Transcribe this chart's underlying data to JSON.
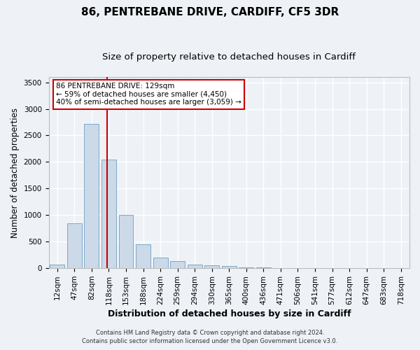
{
  "title_line1": "86, PENTREBANE DRIVE, CARDIFF, CF5 3DR",
  "title_line2": "Size of property relative to detached houses in Cardiff",
  "xlabel": "Distribution of detached houses by size in Cardiff",
  "ylabel": "Number of detached properties",
  "categories": [
    "12sqm",
    "47sqm",
    "82sqm",
    "118sqm",
    "153sqm",
    "188sqm",
    "224sqm",
    "259sqm",
    "294sqm",
    "330sqm",
    "365sqm",
    "400sqm",
    "436sqm",
    "471sqm",
    "506sqm",
    "541sqm",
    "577sqm",
    "612sqm",
    "647sqm",
    "683sqm",
    "718sqm"
  ],
  "values": [
    70,
    850,
    2720,
    2050,
    1000,
    450,
    200,
    130,
    70,
    55,
    40,
    15,
    10,
    8,
    5,
    0,
    0,
    0,
    0,
    0,
    0
  ],
  "bar_color": "#ccd9e8",
  "bar_edge_color": "#7aaac8",
  "red_line_index": 3,
  "annotation_text": "86 PENTREBANE DRIVE: 129sqm\n← 59% of detached houses are smaller (4,450)\n40% of semi-detached houses are larger (3,059) →",
  "annotation_box_color": "#ffffff",
  "annotation_box_edge_color": "#cc0000",
  "red_line_color": "#cc0000",
  "ylim": [
    0,
    3600
  ],
  "yticks": [
    0,
    500,
    1000,
    1500,
    2000,
    2500,
    3000,
    3500
  ],
  "footer_line1": "Contains HM Land Registry data © Crown copyright and database right 2024.",
  "footer_line2": "Contains public sector information licensed under the Open Government Licence v3.0.",
  "bg_color": "#eef2f7",
  "plot_bg_color": "#eef2f7",
  "title1_fontsize": 11,
  "title2_fontsize": 9.5,
  "xlabel_fontsize": 9,
  "ylabel_fontsize": 8.5,
  "tick_fontsize": 7.5,
  "annotation_fontsize": 7.5,
  "footer_fontsize": 6.0
}
